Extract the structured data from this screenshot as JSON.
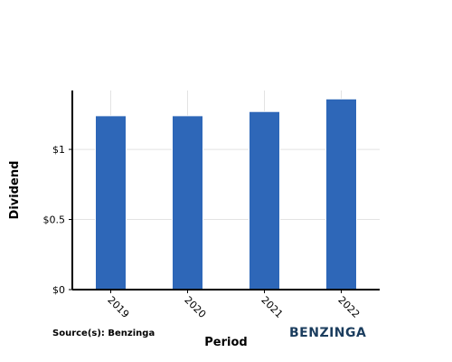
{
  "chart_data": {
    "type": "bar",
    "categories": [
      "2019",
      "2020",
      "2021",
      "2022"
    ],
    "values": [
      1.24,
      1.24,
      1.27,
      1.36
    ],
    "xlabel": "Period",
    "ylabel": "Dividend",
    "ylim": [
      0,
      1.42
    ],
    "yticks": [
      {
        "value": 0,
        "label": "$0"
      },
      {
        "value": 0.5,
        "label": "$0.5"
      },
      {
        "value": 1,
        "label": "$1"
      }
    ],
    "grid": true,
    "colors": {
      "bar": "#2e67b8",
      "grid": "#e3e3e3",
      "axis": "#000000"
    }
  },
  "footer": {
    "source": "Source(s): Benzinga",
    "brand": "BENZINGA"
  }
}
